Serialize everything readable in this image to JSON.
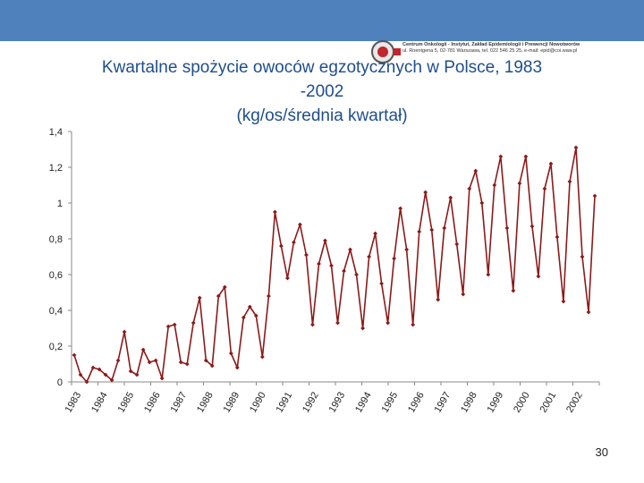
{
  "slide": {
    "title_lines": [
      "Kwartalne spożycie owoców egzotycznych w Polsce, 1983",
      "-2002",
      "(kg/os/średnia kwartał)"
    ],
    "page_number": "30",
    "header_color": "#4f81bd",
    "title_color": "#1f4e8c"
  },
  "logo": {
    "icon": "oncology-centre-logo",
    "text_lines": [
      "Centrum Onkologii - Instytut, Zakład Epidemiologii i Prewencji Nowotworów",
      "ul. Roentgena 5, 02-781 Warszawa, tel. 022 546 25 25, e-mail: epid@coi.waw.pl"
    ]
  },
  "chart_data": {
    "type": "line",
    "title": "Kwartalne spożycie owoców egzotycznych w Polsce, 1983 -2002 (kg/os/średnia kwartał)",
    "xlabel": "",
    "ylabel": "",
    "ylim": [
      0,
      1.4
    ],
    "y_ticks": [
      "0",
      "0,2",
      "0,4",
      "0,6",
      "0,8",
      "1",
      "1,2",
      "1,4"
    ],
    "x_ticks": [
      "1983",
      "1984",
      "1985",
      "1986",
      "1987",
      "1988",
      "1989",
      "1990",
      "1991",
      "1992",
      "1993",
      "1994",
      "1995",
      "1996",
      "1997",
      "1998",
      "1999",
      "2000",
      "2001",
      "2002"
    ],
    "grid": false,
    "legend": "none",
    "line_color": "#8b1a1a",
    "series": [
      {
        "values": [
          0.15,
          0.04,
          0.0,
          0.08,
          0.07,
          0.04,
          0.01,
          0.12,
          0.28,
          0.06,
          0.04,
          0.18,
          0.11,
          0.12,
          0.02,
          0.31,
          0.32,
          0.11,
          0.1,
          0.33,
          0.47,
          0.12,
          0.09,
          0.48,
          0.53,
          0.16,
          0.08,
          0.36,
          0.42,
          0.37,
          0.14,
          0.48,
          0.95,
          0.76,
          0.58,
          0.78,
          0.88,
          0.71,
          0.32,
          0.66,
          0.79,
          0.65,
          0.33,
          0.62,
          0.74,
          0.6,
          0.3,
          0.7,
          0.83,
          0.55,
          0.33,
          0.69,
          0.97,
          0.74,
          0.32,
          0.84,
          1.06,
          0.85,
          0.46,
          0.86,
          1.03,
          0.77,
          0.49,
          1.08,
          1.18,
          1.0,
          0.6,
          1.1,
          1.26,
          0.86,
          0.51,
          1.11,
          1.26,
          0.87,
          0.59,
          1.08,
          1.22,
          0.81,
          0.45,
          1.12,
          1.31,
          0.7,
          0.39,
          1.04
        ]
      }
    ]
  }
}
